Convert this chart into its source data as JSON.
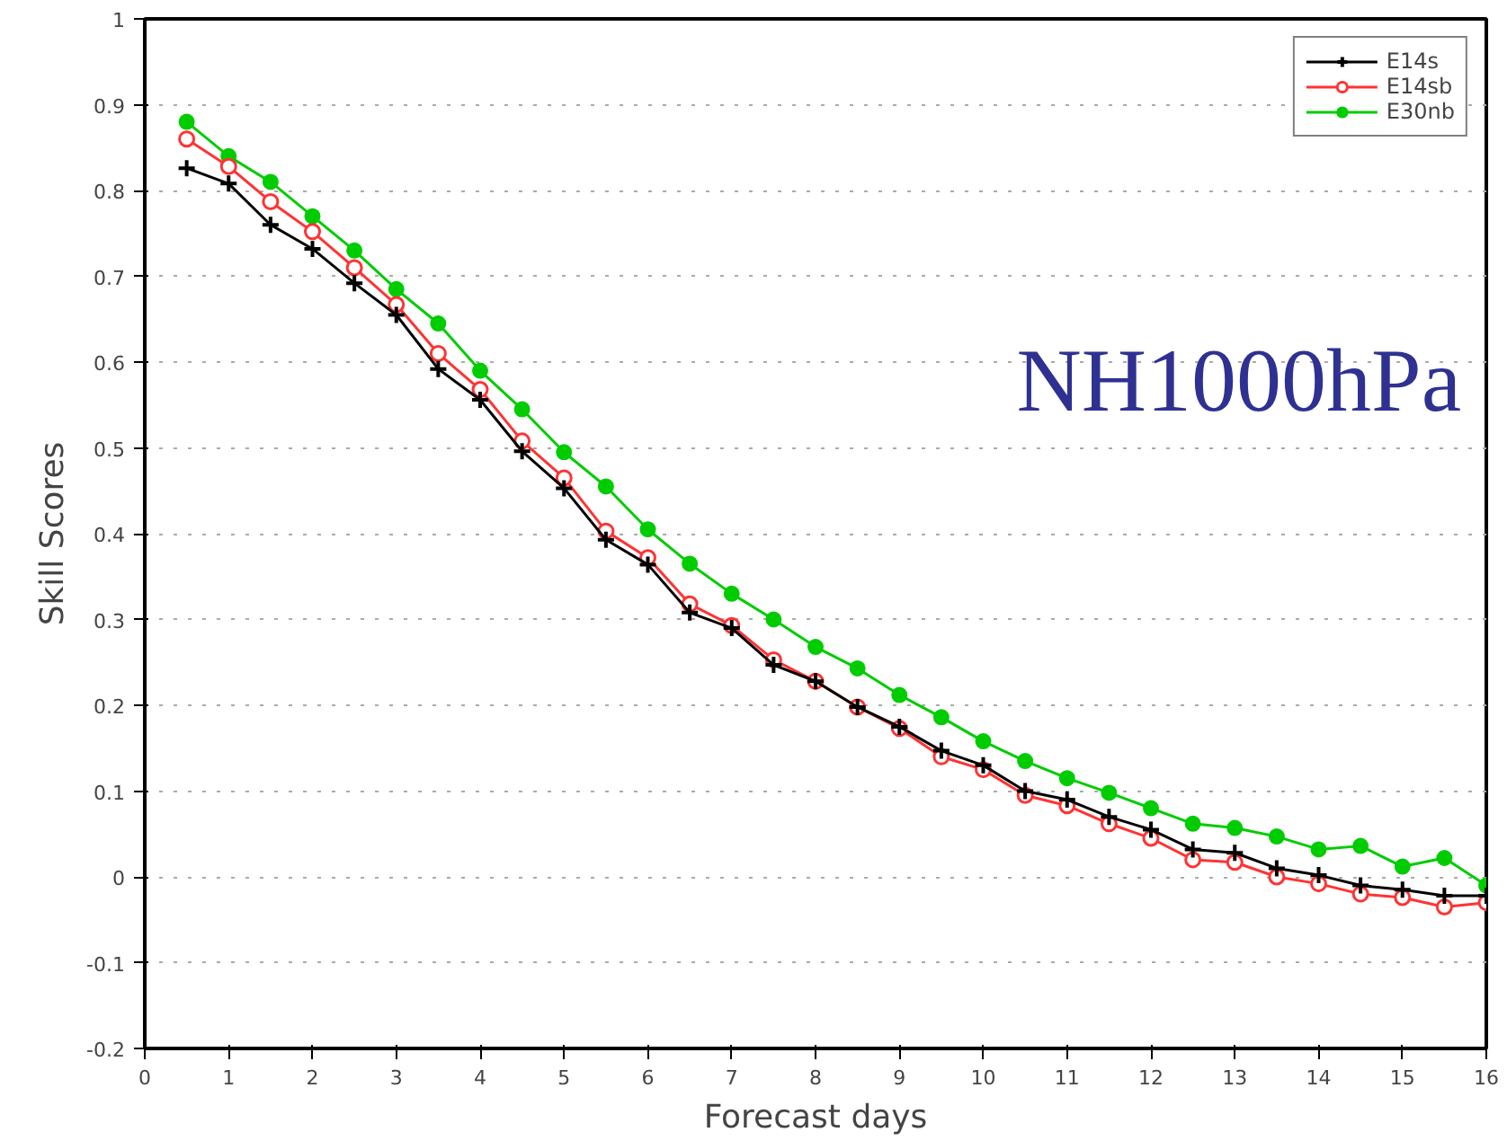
{
  "chart_data": {
    "type": "line",
    "xlabel": "Forecast days",
    "ylabel": "Skill Scores",
    "annotations": [
      "NH1000hPa"
    ],
    "x": [
      0.5,
      1,
      1.5,
      2,
      2.5,
      3,
      3.5,
      4,
      4.5,
      5,
      5.5,
      6,
      6.5,
      7,
      7.5,
      8,
      8.5,
      9,
      9.5,
      10,
      10.5,
      11,
      11.5,
      12,
      12.5,
      13,
      13.5,
      14,
      14.5,
      15,
      15.5,
      16
    ],
    "series": [
      {
        "name": "E14s",
        "color": "#000000",
        "marker": "cross",
        "values": [
          0.826,
          0.808,
          0.76,
          0.732,
          0.692,
          0.655,
          0.592,
          0.556,
          0.496,
          0.453,
          0.393,
          0.364,
          0.308,
          0.29,
          0.247,
          0.228,
          0.198,
          0.175,
          0.147,
          0.13,
          0.1,
          0.09,
          0.07,
          0.055,
          0.032,
          0.028,
          0.01,
          0.002,
          -0.01,
          -0.015,
          -0.022,
          -0.022
        ]
      },
      {
        "name": "E14sb",
        "color": "#ff3333",
        "marker": "circle",
        "values": [
          0.86,
          0.828,
          0.787,
          0.752,
          0.71,
          0.667,
          0.61,
          0.568,
          0.508,
          0.465,
          0.403,
          0.372,
          0.318,
          0.293,
          0.253,
          0.228,
          0.198,
          0.173,
          0.14,
          0.125,
          0.095,
          0.083,
          0.062,
          0.045,
          0.02,
          0.017,
          0.0,
          -0.008,
          -0.02,
          -0.024,
          -0.035,
          -0.03
        ]
      },
      {
        "name": "E30nb",
        "color": "#00cc00",
        "marker": "dot",
        "values": [
          0.88,
          0.84,
          0.81,
          0.77,
          0.73,
          0.685,
          0.645,
          0.59,
          0.545,
          0.495,
          0.455,
          0.405,
          0.365,
          0.33,
          0.3,
          0.268,
          0.243,
          0.212,
          0.186,
          0.158,
          0.135,
          0.115,
          0.098,
          0.08,
          0.062,
          0.057,
          0.047,
          0.032,
          0.036,
          0.012,
          0.022,
          -0.01
        ]
      }
    ],
    "xlim": [
      0,
      16
    ],
    "xticks": [
      0,
      1,
      2,
      3,
      4,
      5,
      6,
      7,
      8,
      9,
      10,
      11,
      12,
      13,
      14,
      15,
      16
    ],
    "ylim": [
      -0.2,
      1
    ],
    "yticks": [
      -0.2,
      -0.1,
      0,
      0.1,
      0.2,
      0.3,
      0.4,
      0.5,
      0.6,
      0.7,
      0.8,
      0.9,
      1
    ],
    "grid": "y",
    "legend": "top right",
    "line_style": "solid"
  }
}
